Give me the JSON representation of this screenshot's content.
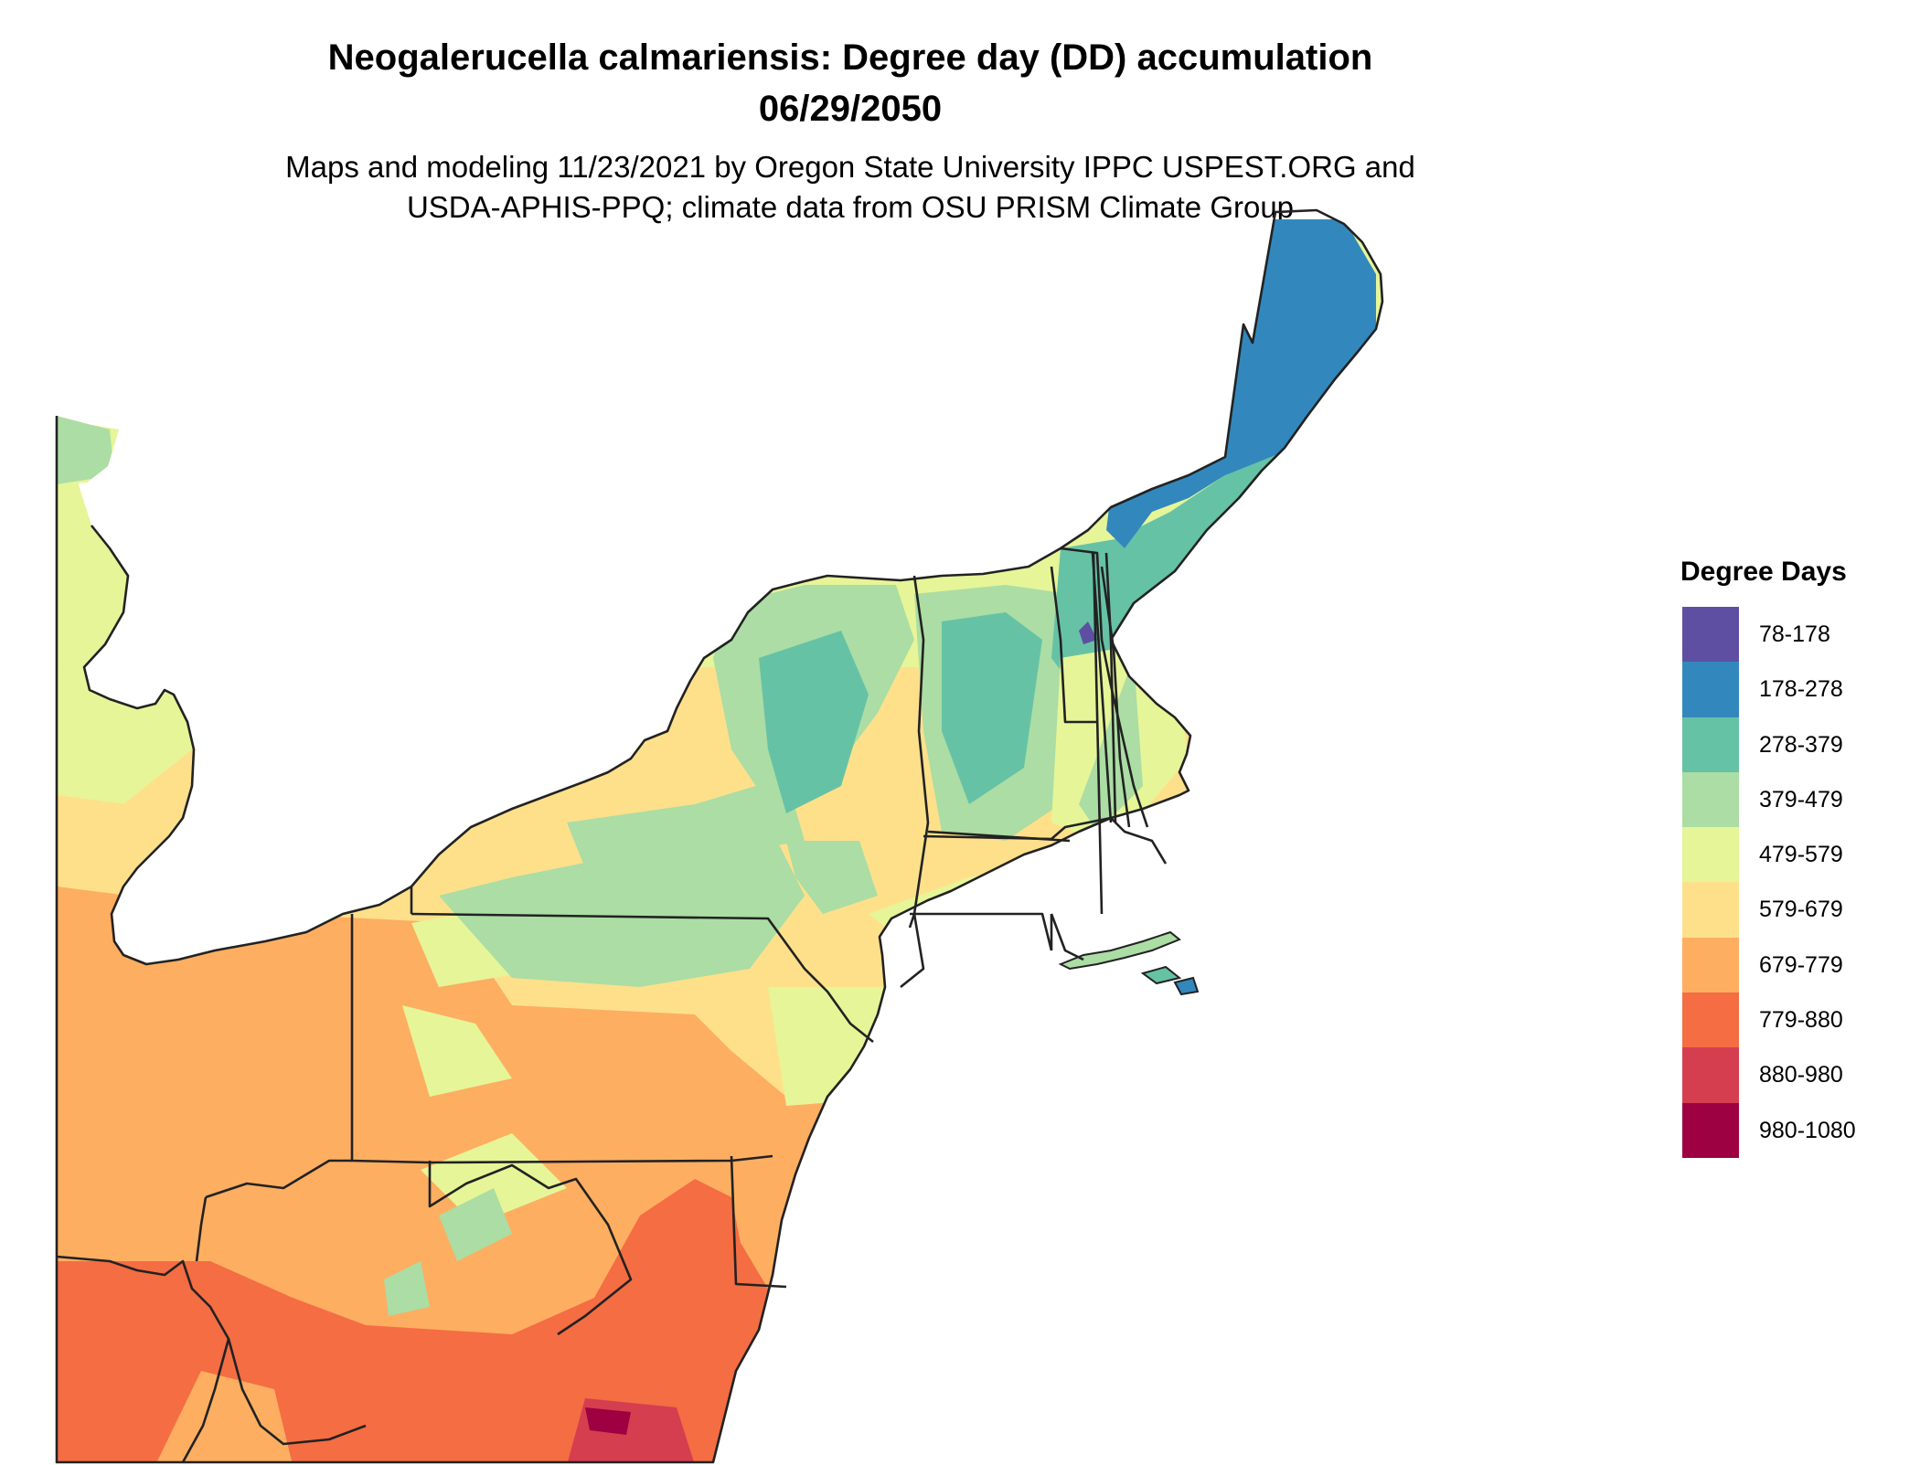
{
  "title": {
    "line1": "Neogalerucella calmariensis: Degree day (DD) accumulation",
    "line2": "06/29/2050"
  },
  "subtitle": {
    "line1": "Maps and modeling 11/23/2021 by Oregon State University IPPC USPEST.ORG and",
    "line2": "USDA-APHIS-PPQ; climate data from OSU PRISM Climate Group"
  },
  "legend": {
    "title": "Degree Days",
    "items": [
      {
        "label": "78-178",
        "color": "#5e4fa2"
      },
      {
        "label": "178-278",
        "color": "#3288bd"
      },
      {
        "label": "278-379",
        "color": "#66c2a5"
      },
      {
        "label": "379-479",
        "color": "#abdda4"
      },
      {
        "label": "479-579",
        "color": "#e6f598"
      },
      {
        "label": "579-679",
        "color": "#fee08b"
      },
      {
        "label": "679-779",
        "color": "#fdae61"
      },
      {
        "label": "779-880",
        "color": "#f46d43"
      },
      {
        "label": "880-980",
        "color": "#d53e4f"
      },
      {
        "label": "980-1080",
        "color": "#9e0142"
      }
    ]
  }
}
